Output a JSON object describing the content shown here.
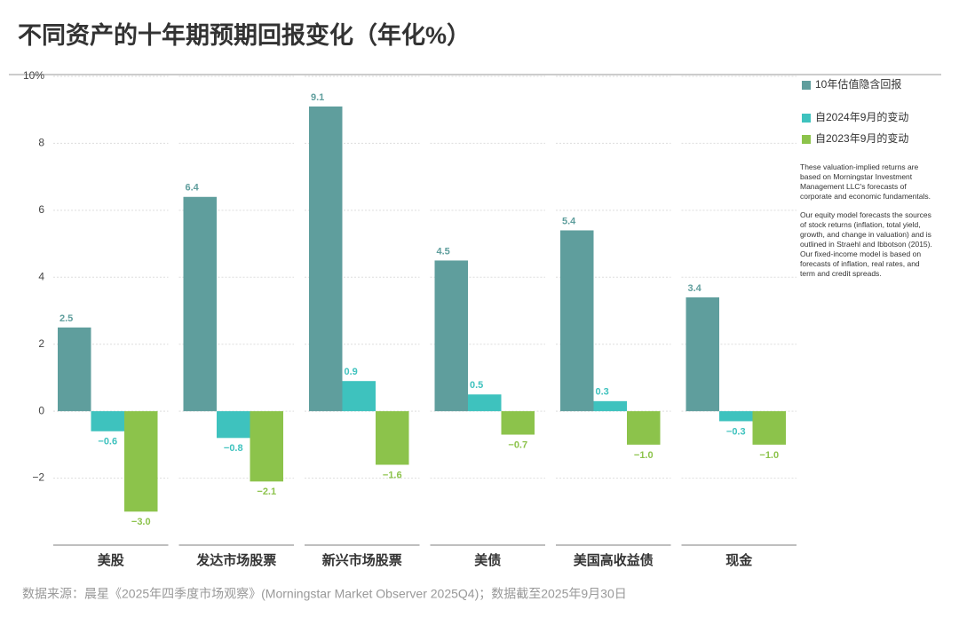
{
  "chart_data": {
    "type": "bar",
    "title": "不同资产的十年期预期回报变化（年化%）",
    "categories": [
      "美股",
      "发达市场股票",
      "新兴市场股票",
      "美债",
      "美国高收益债",
      "现金"
    ],
    "series": [
      {
        "name": "10年估值隐含回报",
        "color": "#5f9e9d",
        "values": [
          2.5,
          6.4,
          9.1,
          4.5,
          5.4,
          3.4
        ],
        "value_labels": [
          "2.5",
          "6.4",
          "9.1",
          "4.5",
          "5.4",
          "3.4"
        ]
      },
      {
        "name": "自2024年9月的变动",
        "color": "#3ec2be",
        "values": [
          -0.6,
          -0.8,
          0.9,
          0.5,
          0.3,
          -0.3
        ],
        "value_labels": [
          "−0.6",
          "−0.8",
          "0.9",
          "0.5",
          "0.3",
          "−0.3"
        ]
      },
      {
        "name": "自2023年9月的变动",
        "color": "#8cc34b",
        "values": [
          -3.0,
          -2.1,
          -1.6,
          -0.7,
          -1.0,
          -1.0
        ],
        "value_labels": [
          "−3.0",
          "−2.1",
          "−1.6",
          "−0.7",
          "−1.0",
          "−1.0"
        ]
      }
    ],
    "ylim": [
      -4,
      10
    ],
    "yticks": [
      {
        "value": 10,
        "label": "10%"
      },
      8,
      6,
      4,
      2,
      0,
      {
        "value": -2,
        "label": "−2"
      }
    ],
    "grid": true,
    "legend": "right",
    "notes": [
      "These valuation-implied returns are based on Morningstar Investment Management LLC's forecasts of corporate and economic fundamentals.",
      "Our equity model forecasts the sources of stock returns (inflation, total yield, growth, and change in valuation) and is outlined in Straehl and Ibbotson (2015). Our fixed-income model is based on forecasts of inflation, real rates, and term and credit spreads."
    ],
    "source": "数据来源：晨星《2025年四季度市场观察》(Morningstar Market Observer 2025Q4)；数据截至2025年9月30日"
  }
}
